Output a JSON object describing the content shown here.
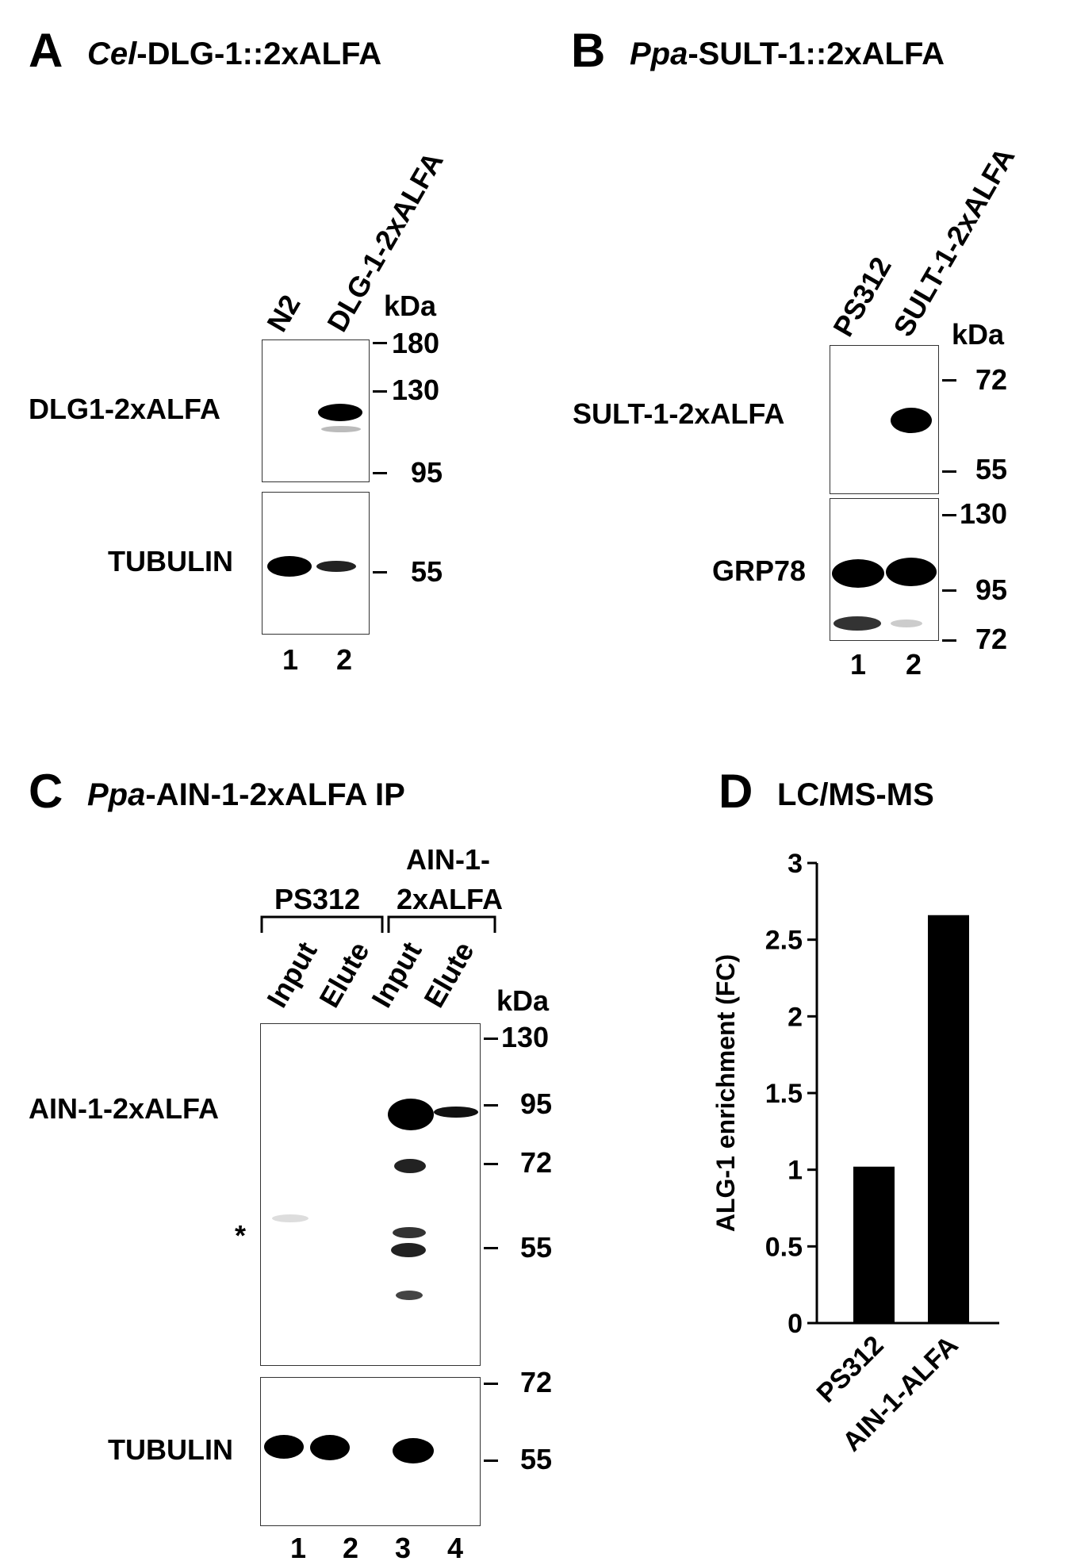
{
  "panels": {
    "A": {
      "letter": "A",
      "title_italic": "Cel",
      "title_rest": "-DLG-1::2xALFA",
      "lanes": [
        "N2",
        "DLG-1-2xALFA"
      ],
      "kda_label": "kDa",
      "blot_top_label": "DLG1-2xALFA",
      "blot_bottom_label": "TUBULIN",
      "markers_top": [
        "180",
        "130",
        "95"
      ],
      "markers_bottom": [
        "55"
      ],
      "lane_numbers": [
        "1",
        "2"
      ]
    },
    "B": {
      "letter": "B",
      "title_italic": "Ppa",
      "title_rest": "-SULT-1::2xALFA",
      "lanes": [
        "PS312",
        "SULT-1-2xALFA"
      ],
      "kda_label": "kDa",
      "blot_top_label": "SULT-1-2xALFA",
      "blot_bottom_label": "GRP78",
      "markers_top": [
        "72",
        "55"
      ],
      "markers_bottom": [
        "130",
        "95",
        "72"
      ],
      "lane_numbers": [
        "1",
        "2"
      ]
    },
    "C": {
      "letter": "C",
      "title_italic": "Ppa",
      "title_rest": "-AIN-1-2xALFA IP",
      "group1": "PS312",
      "group2_line1": "AIN-1-",
      "group2_line2": "2xALFA",
      "lanes": [
        "Input",
        "Elute",
        "Input",
        "Elute"
      ],
      "kda_label": "kDa",
      "blot_top_label": "AIN-1-2xALFA",
      "asterisk": "*",
      "blot_bottom_label": "TUBULIN",
      "markers_top": [
        "130",
        "95",
        "72",
        "55"
      ],
      "markers_bottom": [
        "72",
        "55"
      ],
      "lane_numbers": [
        "1",
        "2",
        "3",
        "4"
      ]
    },
    "D": {
      "letter": "D",
      "title": "LC/MS-MS"
    }
  },
  "chart_data": {
    "type": "bar",
    "title": "LC/MS-MS",
    "categories": [
      "PS312",
      "AIN-1-ALFA"
    ],
    "values": [
      1.02,
      2.66
    ],
    "ylabel": "ALG-1 enrichment (FC)",
    "xlabel": "",
    "ylim": [
      0,
      3
    ],
    "yticks": [
      0,
      0.5,
      1,
      1.5,
      2,
      2.5,
      3
    ],
    "ytick_labels": [
      "0",
      "0.5",
      "1",
      "1.5",
      "2",
      "2.5",
      "3"
    ],
    "bar_color": "#000000",
    "grid": false
  }
}
